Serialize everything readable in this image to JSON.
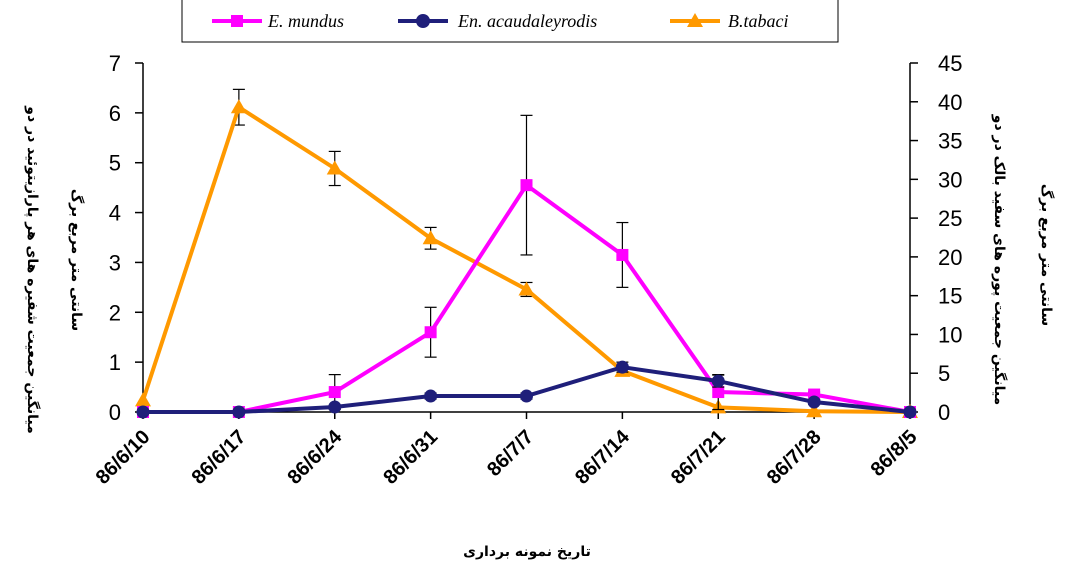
{
  "chart_data": {
    "type": "line",
    "categories": [
      "86/6/10",
      "86/6/17",
      "86/6/24",
      "86/6/31",
      "86/7/7",
      "86/7/14",
      "86/7/21",
      "86/7/28",
      "86/8/5"
    ],
    "xlabel": "تاریخ نمونه برداری",
    "ylabel_left_line1": "میانگین جمعیت شفیره های هر پارازیتوئید در دو",
    "ylabel_left_line2": "سانتی متر مربع برگ",
    "ylabel_right_line1": "میانگین جمعیت پوره های سفید بالک در دو",
    "ylabel_right_line2": "سانتی متر مربع برگ",
    "ylim_left": [
      0,
      7
    ],
    "ylim_right": [
      0,
      45
    ],
    "yticks_left": [
      "0",
      "1",
      "2",
      "3",
      "4",
      "5",
      "6",
      "7"
    ],
    "yticks_right": [
      "0",
      "5",
      "10",
      "15",
      "20",
      "25",
      "30",
      "35",
      "40",
      "45"
    ],
    "legend_position": "top-center",
    "series": [
      {
        "name": "E. mundus",
        "axis": "left",
        "color": "#ff00ff",
        "marker": "square",
        "values": [
          0.0,
          0.0,
          0.4,
          1.6,
          4.55,
          3.15,
          0.4,
          0.35,
          0.0
        ],
        "error": [
          0,
          0,
          0.35,
          0.5,
          1.4,
          0.65,
          0.35,
          0.05,
          0
        ]
      },
      {
        "name": "En. acaudaleyrodis",
        "axis": "left",
        "color": "#1f1f7a",
        "marker": "circle",
        "values": [
          0.0,
          0.0,
          0.1,
          0.32,
          0.32,
          0.9,
          0.62,
          0.2,
          0.0
        ],
        "error": [
          0,
          0,
          0,
          0.06,
          0.06,
          0.1,
          0.12,
          0.05,
          0
        ]
      },
      {
        "name": "B.tabaci",
        "axis": "right",
        "color": "#ff9900",
        "marker": "triangle",
        "values": [
          1.5,
          39.3,
          31.4,
          22.4,
          15.8,
          5.3,
          0.6,
          0.1,
          0.0
        ],
        "error": [
          0,
          2.3,
          2.2,
          1.4,
          0.9,
          0,
          0,
          0,
          0
        ]
      }
    ]
  }
}
